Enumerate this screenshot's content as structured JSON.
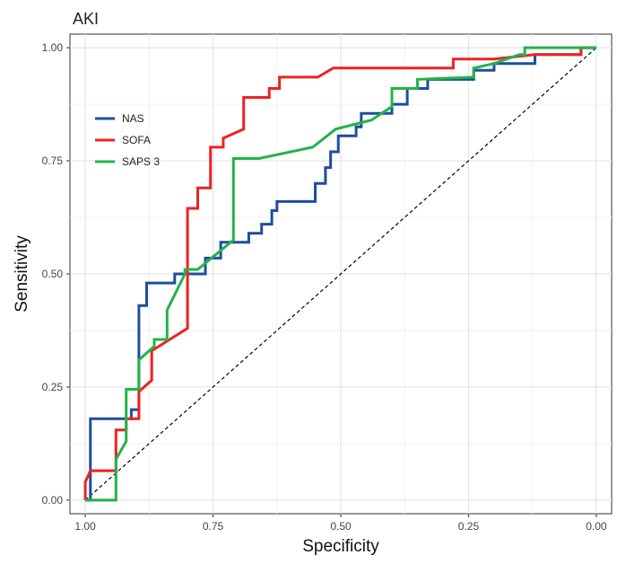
{
  "chart_data": {
    "type": "line",
    "title": "AKI",
    "xlabel": "Specificity",
    "ylabel": "Sensitivity",
    "x_reversed": true,
    "xlim": [
      1.03,
      -0.03
    ],
    "ylim": [
      -0.03,
      1.03
    ],
    "x_ticks": [
      1.0,
      0.75,
      0.5,
      0.25,
      0.0
    ],
    "x_tick_labels": [
      "1.00",
      "0.75",
      "0.50",
      "0.25",
      "0.00"
    ],
    "y_ticks": [
      0.0,
      0.25,
      0.5,
      0.75,
      1.0
    ],
    "y_tick_labels": [
      "0.00",
      "0.25",
      "0.50",
      "0.75",
      "1.00"
    ],
    "grid": true,
    "legend_position": "top-left",
    "reference_line": {
      "style": "dashed",
      "color": "#000000",
      "points": [
        [
          1.0,
          0.0
        ],
        [
          0.0,
          1.0
        ]
      ]
    },
    "series": [
      {
        "name": "NAS",
        "color": "#1f4e9c",
        "points": [
          [
            1.0,
            0.0
          ],
          [
            0.99,
            0.0
          ],
          [
            0.99,
            0.18
          ],
          [
            0.91,
            0.18
          ],
          [
            0.91,
            0.2
          ],
          [
            0.895,
            0.2
          ],
          [
            0.895,
            0.43
          ],
          [
            0.88,
            0.43
          ],
          [
            0.88,
            0.48
          ],
          [
            0.825,
            0.48
          ],
          [
            0.825,
            0.5
          ],
          [
            0.79,
            0.5
          ],
          [
            0.79,
            0.5
          ],
          [
            0.765,
            0.5
          ],
          [
            0.765,
            0.535
          ],
          [
            0.735,
            0.535
          ],
          [
            0.735,
            0.57
          ],
          [
            0.68,
            0.57
          ],
          [
            0.68,
            0.59
          ],
          [
            0.655,
            0.59
          ],
          [
            0.655,
            0.61
          ],
          [
            0.635,
            0.61
          ],
          [
            0.635,
            0.64
          ],
          [
            0.625,
            0.64
          ],
          [
            0.625,
            0.66
          ],
          [
            0.55,
            0.66
          ],
          [
            0.55,
            0.7
          ],
          [
            0.53,
            0.7
          ],
          [
            0.53,
            0.735
          ],
          [
            0.52,
            0.735
          ],
          [
            0.52,
            0.77
          ],
          [
            0.505,
            0.77
          ],
          [
            0.505,
            0.805
          ],
          [
            0.47,
            0.805
          ],
          [
            0.47,
            0.825
          ],
          [
            0.46,
            0.825
          ],
          [
            0.46,
            0.855
          ],
          [
            0.4,
            0.855
          ],
          [
            0.4,
            0.875
          ],
          [
            0.37,
            0.875
          ],
          [
            0.37,
            0.91
          ],
          [
            0.33,
            0.91
          ],
          [
            0.33,
            0.93
          ],
          [
            0.24,
            0.93
          ],
          [
            0.24,
            0.95
          ],
          [
            0.2,
            0.95
          ],
          [
            0.2,
            0.965
          ],
          [
            0.12,
            0.965
          ],
          [
            0.12,
            0.985
          ],
          [
            0.03,
            0.985
          ],
          [
            0.03,
            1.0
          ],
          [
            0.0,
            1.0
          ]
        ]
      },
      {
        "name": "SOFA",
        "color": "#ee2222",
        "points": [
          [
            1.0,
            0.0
          ],
          [
            1.0,
            0.04
          ],
          [
            0.99,
            0.065
          ],
          [
            0.94,
            0.065
          ],
          [
            0.94,
            0.155
          ],
          [
            0.92,
            0.155
          ],
          [
            0.92,
            0.18
          ],
          [
            0.895,
            0.18
          ],
          [
            0.895,
            0.24
          ],
          [
            0.87,
            0.265
          ],
          [
            0.87,
            0.33
          ],
          [
            0.8,
            0.38
          ],
          [
            0.8,
            0.645
          ],
          [
            0.78,
            0.645
          ],
          [
            0.78,
            0.69
          ],
          [
            0.755,
            0.69
          ],
          [
            0.755,
            0.78
          ],
          [
            0.73,
            0.78
          ],
          [
            0.73,
            0.8
          ],
          [
            0.69,
            0.82
          ],
          [
            0.69,
            0.89
          ],
          [
            0.64,
            0.89
          ],
          [
            0.64,
            0.91
          ],
          [
            0.62,
            0.91
          ],
          [
            0.62,
            0.935
          ],
          [
            0.545,
            0.935
          ],
          [
            0.515,
            0.955
          ],
          [
            0.28,
            0.955
          ],
          [
            0.28,
            0.975
          ],
          [
            0.2,
            0.975
          ],
          [
            0.12,
            0.985
          ],
          [
            0.03,
            0.985
          ],
          [
            0.03,
            1.0
          ],
          [
            0.0,
            1.0
          ]
        ]
      },
      {
        "name": "SAPS 3",
        "color": "#22b34a",
        "points": [
          [
            1.0,
            0.0
          ],
          [
            0.94,
            0.0
          ],
          [
            0.94,
            0.09
          ],
          [
            0.92,
            0.13
          ],
          [
            0.92,
            0.245
          ],
          [
            0.895,
            0.245
          ],
          [
            0.895,
            0.31
          ],
          [
            0.865,
            0.34
          ],
          [
            0.865,
            0.355
          ],
          [
            0.84,
            0.355
          ],
          [
            0.84,
            0.42
          ],
          [
            0.805,
            0.5
          ],
          [
            0.805,
            0.51
          ],
          [
            0.78,
            0.51
          ],
          [
            0.71,
            0.575
          ],
          [
            0.71,
            0.755
          ],
          [
            0.66,
            0.755
          ],
          [
            0.555,
            0.78
          ],
          [
            0.51,
            0.82
          ],
          [
            0.44,
            0.84
          ],
          [
            0.4,
            0.87
          ],
          [
            0.4,
            0.91
          ],
          [
            0.35,
            0.91
          ],
          [
            0.35,
            0.93
          ],
          [
            0.24,
            0.935
          ],
          [
            0.24,
            0.955
          ],
          [
            0.2,
            0.965
          ],
          [
            0.15,
            0.985
          ],
          [
            0.14,
            0.985
          ],
          [
            0.14,
            1.0
          ],
          [
            0.0,
            1.0
          ]
        ]
      }
    ]
  }
}
